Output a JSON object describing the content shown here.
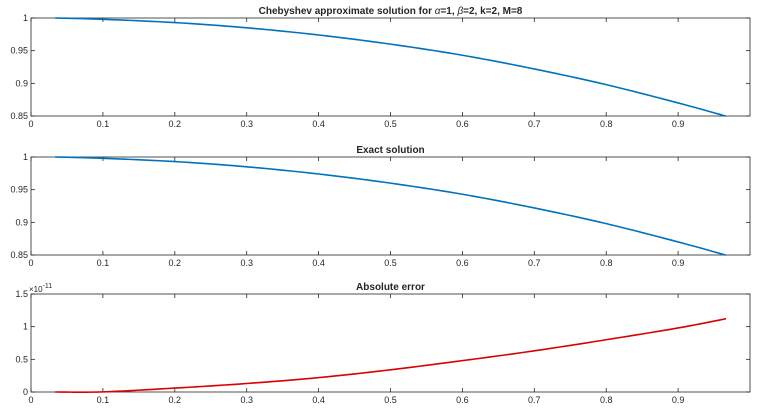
{
  "chart_data": [
    {
      "type": "line",
      "title_parts": [
        "Chebyshev approximate solution for ",
        "α",
        "=1, ",
        "β",
        "=2, k=2, M=8"
      ],
      "xlabel": "",
      "ylabel": "",
      "xlim": [
        0,
        1
      ],
      "ylim": [
        0.85,
        1
      ],
      "xticks": [
        "0",
        "0.1",
        "0.2",
        "0.3",
        "0.4",
        "0.5",
        "0.6",
        "0.7",
        "0.8",
        "0.9"
      ],
      "yticks": [
        "0.85",
        "0.9",
        "0.95",
        "1"
      ],
      "grid": false,
      "line_color": "#0072BD",
      "series": [
        {
          "x": [
            0.0341,
            0.1,
            0.2,
            0.3,
            0.4,
            0.5,
            0.6,
            0.7,
            0.8,
            0.9,
            0.9659
          ],
          "values": [
            1.0,
            0.998,
            0.993,
            0.985,
            0.974,
            0.96,
            0.943,
            0.922,
            0.898,
            0.87,
            0.85
          ]
        }
      ]
    },
    {
      "type": "line",
      "title_parts": [
        "Exact solution"
      ],
      "xlabel": "",
      "ylabel": "",
      "xlim": [
        0,
        1
      ],
      "ylim": [
        0.85,
        1
      ],
      "xticks": [
        "0",
        "0.1",
        "0.2",
        "0.3",
        "0.4",
        "0.5",
        "0.6",
        "0.7",
        "0.8",
        "0.9"
      ],
      "yticks": [
        "0.85",
        "0.9",
        "0.95",
        "1"
      ],
      "grid": false,
      "line_color": "#0072BD",
      "series": [
        {
          "x": [
            0.0341,
            0.1,
            0.2,
            0.3,
            0.4,
            0.5,
            0.6,
            0.7,
            0.8,
            0.9,
            0.9659
          ],
          "values": [
            1.0,
            0.998,
            0.993,
            0.985,
            0.974,
            0.96,
            0.943,
            0.922,
            0.898,
            0.87,
            0.85
          ]
        }
      ]
    },
    {
      "type": "line",
      "title_parts": [
        "Absolute error"
      ],
      "xlabel": "",
      "ylabel": "",
      "y_exponent_base": "×10",
      "y_exponent_power": "-11",
      "xlim": [
        0,
        1
      ],
      "ylim": [
        0,
        1.5e-11
      ],
      "xticks": [
        "0",
        "0.1",
        "0.2",
        "0.3",
        "0.4",
        "0.5",
        "0.6",
        "0.7",
        "0.8",
        "0.9"
      ],
      "yticks": [
        "0",
        "0.5",
        "1",
        "1.5"
      ],
      "grid": false,
      "line_color": "#D90000",
      "series": [
        {
          "x": [
            0.0341,
            0.1,
            0.2,
            0.3,
            0.4,
            0.5,
            0.6,
            0.7,
            0.8,
            0.9,
            0.9659
          ],
          "values": [
            0.0,
            2e-14,
            6e-13,
            1.3e-12,
            2.2e-12,
            3.4e-12,
            4.8e-12,
            6.3e-12,
            8e-12,
            9.8e-12,
            1.12e-11
          ]
        }
      ]
    }
  ]
}
